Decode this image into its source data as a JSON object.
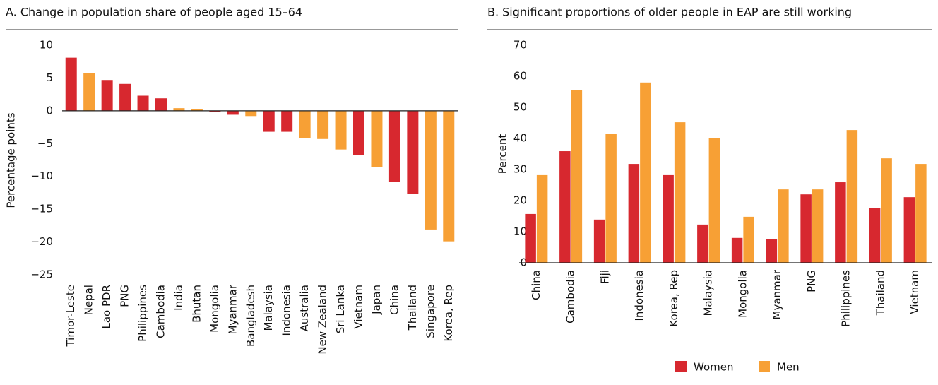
{
  "chart_data": [
    {
      "type": "bar",
      "title": "A. Change in population share of people aged 15–64",
      "ylabel": "Percentage points",
      "categories": [
        "Timor-Leste",
        "Nepal",
        "Lao PDR",
        "PNG",
        "Philippines",
        "Cambodia",
        "India",
        "Bhutan",
        "Mongolia",
        "Myanmar",
        "Bangladesh",
        "Malaysia",
        "Indonesia",
        "Australia",
        "New Zealand",
        "Sri Lanka",
        "Vietnam",
        "Japan",
        "China",
        "Thailand",
        "Singapore",
        "Korea, Rep"
      ],
      "values": [
        8.1,
        5.7,
        4.7,
        4.1,
        2.3,
        1.9,
        0.4,
        0.3,
        -0.2,
        -0.6,
        -0.8,
        -3.2,
        -3.2,
        -4.2,
        -4.3,
        -5.9,
        -6.8,
        -8.6,
        -10.8,
        -12.7,
        -18.1,
        -19.9
      ],
      "colors": [
        "#d7282f",
        "#f7a035",
        "#d7282f",
        "#d7282f",
        "#d7282f",
        "#d7282f",
        "#f7a035",
        "#f7a035",
        "#d7282f",
        "#d7282f",
        "#f7a035",
        "#d7282f",
        "#d7282f",
        "#f7a035",
        "#f7a035",
        "#f7a035",
        "#d7282f",
        "#f7a035",
        "#d7282f",
        "#d7282f",
        "#f7a035",
        "#f7a035"
      ],
      "ylim": [
        -25,
        10
      ],
      "yticks": [
        10,
        5,
        0,
        {
          "value": -5,
          "label": "−5"
        },
        {
          "value": -10,
          "label": "−10"
        },
        {
          "value": -15,
          "label": "−15"
        },
        {
          "value": -20,
          "label": "−20"
        },
        {
          "value": -25,
          "label": "−25"
        }
      ]
    },
    {
      "type": "grouped_bar",
      "title": "B. Significant proportions of older people in EAP are still working",
      "ylabel": "Percent",
      "categories": [
        "China",
        "Cambodia",
        "Fiji",
        "Indonesia",
        "Korea, Rep",
        "Malaysia",
        "Mongolia",
        "Myanmar",
        "PNG",
        "Philippines",
        "Thailand",
        "Vietnam"
      ],
      "series": [
        {
          "name": "Women",
          "color": "#d7282f",
          "values": [
            15.7,
            35.9,
            13.9,
            31.8,
            28.2,
            12.3,
            8,
            7.5,
            22,
            25.9,
            17.5,
            21.1
          ]
        },
        {
          "name": "Men",
          "color": "#f7a035",
          "values": [
            28.2,
            55.5,
            41.4,
            58,
            45.2,
            40.2,
            14.8,
            23.6,
            23.6,
            42.7,
            33.6,
            31.8
          ]
        }
      ],
      "ylim": [
        0,
        70
      ],
      "yticks": [
        0,
        10,
        20,
        30,
        40,
        50,
        60,
        70
      ],
      "legend": "bottom"
    }
  ]
}
